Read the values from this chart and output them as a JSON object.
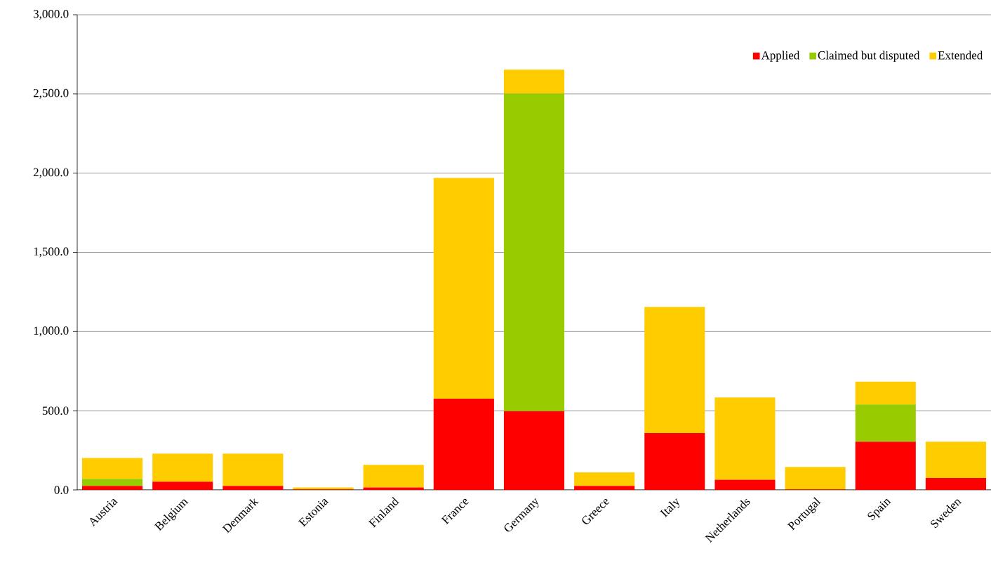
{
  "chart_data": {
    "type": "bar",
    "stacked": true,
    "categories": [
      "Austria",
      "Belgium",
      "Denmark",
      "Estonia",
      "Finland",
      "France",
      "Germany",
      "Greece",
      "Italy",
      "Netherlands",
      "Portugal",
      "Spain",
      "Sweden"
    ],
    "series": [
      {
        "name": "Applied",
        "color": "#ff0000",
        "values": [
          25,
          52,
          25,
          3,
          15,
          576,
          497,
          25,
          359,
          64,
          3,
          305,
          75
        ]
      },
      {
        "name": "Claimed but disputed",
        "color": "#99cc00",
        "values": [
          45,
          0,
          0,
          0,
          0,
          0,
          2006,
          0,
          0,
          0,
          0,
          234,
          0
        ]
      },
      {
        "name": "Extended",
        "color": "#ffcc00",
        "values": [
          132,
          177,
          204,
          13,
          143,
          1394,
          150,
          86,
          797,
          520,
          142,
          144,
          230
        ]
      }
    ],
    "ylim": [
      0,
      3000
    ],
    "yticks": [
      {
        "value": 0,
        "label": "0.0"
      },
      {
        "value": 500,
        "label": "500.0"
      },
      {
        "value": 1000,
        "label": "1,000.0"
      },
      {
        "value": 1500,
        "label": "1,500.0"
      },
      {
        "value": 2000,
        "label": "2,000.0"
      },
      {
        "value": 2500,
        "label": "2,500.0"
      },
      {
        "value": 3000,
        "label": "3,000.0"
      }
    ],
    "grid": "y",
    "legend": "top right"
  }
}
